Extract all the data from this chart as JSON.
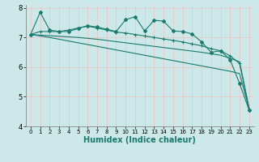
{
  "xlabel": "Humidex (Indice chaleur)",
  "xlim": [
    -0.5,
    23.5
  ],
  "ylim": [
    4,
    8.1
  ],
  "yticks": [
    4,
    5,
    6,
    7,
    8
  ],
  "xticks": [
    0,
    1,
    2,
    3,
    4,
    5,
    6,
    7,
    8,
    9,
    10,
    11,
    12,
    13,
    14,
    15,
    16,
    17,
    18,
    19,
    20,
    21,
    22,
    23
  ],
  "bg_color": "#cce8e8",
  "grid_color": "#e8c8c8",
  "line_color": "#1a7a6e",
  "line1": [
    7.1,
    7.85,
    7.25,
    7.2,
    7.2,
    7.3,
    7.4,
    7.35,
    7.28,
    7.2,
    7.6,
    7.7,
    7.22,
    7.58,
    7.55,
    7.22,
    7.2,
    7.12,
    6.85,
    6.5,
    6.55,
    6.25,
    5.45,
    4.55
  ],
  "line2": [
    7.1,
    7.2,
    7.2,
    7.2,
    7.25,
    7.32,
    7.38,
    7.32,
    7.25,
    7.18,
    7.15,
    7.1,
    7.05,
    7.0,
    6.95,
    6.9,
    6.85,
    6.78,
    6.72,
    6.62,
    6.55,
    6.38,
    6.12,
    4.58
  ],
  "line3": [
    7.1,
    7.08,
    7.06,
    7.04,
    7.02,
    7.0,
    6.97,
    6.94,
    6.9,
    6.86,
    6.82,
    6.78,
    6.74,
    6.7,
    6.66,
    6.62,
    6.58,
    6.54,
    6.5,
    6.45,
    6.4,
    6.3,
    6.18,
    4.62
  ],
  "line4": [
    7.1,
    7.05,
    7.0,
    6.94,
    6.88,
    6.82,
    6.76,
    6.7,
    6.64,
    6.58,
    6.52,
    6.46,
    6.4,
    6.34,
    6.28,
    6.22,
    6.16,
    6.1,
    6.04,
    5.98,
    5.92,
    5.86,
    5.78,
    4.6
  ]
}
